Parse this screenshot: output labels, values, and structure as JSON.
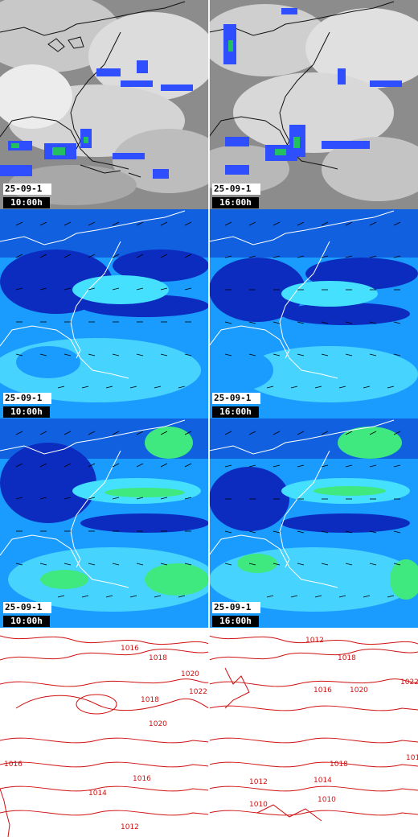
{
  "panels": [
    {
      "row": 0,
      "col": 0,
      "kind": "satellite-ir",
      "date": "25-09-1",
      "time": "10:00h"
    },
    {
      "row": 0,
      "col": 1,
      "kind": "satellite-ir",
      "date": "25-09-1",
      "time": "16:00h"
    },
    {
      "row": 1,
      "col": 0,
      "kind": "wind-field",
      "date": "25-09-1",
      "time": "10:00h"
    },
    {
      "row": 1,
      "col": 1,
      "kind": "wind-field",
      "date": "25-09-1",
      "time": "16:00h"
    },
    {
      "row": 2,
      "col": 0,
      "kind": "wind-gust-field",
      "date": "25-09-1",
      "time": "10:00h"
    },
    {
      "row": 2,
      "col": 1,
      "kind": "wind-gust-field",
      "date": "25-09-1",
      "time": "16:00h"
    },
    {
      "row": 3,
      "col": 0,
      "kind": "pressure-isobars"
    },
    {
      "row": 3,
      "col": 1,
      "kind": "pressure-isobars"
    }
  ],
  "isobar_labels": {
    "left": [
      "1016",
      "1018",
      "1020",
      "1022",
      "1018",
      "1020",
      "1016",
      "1016",
      "1014",
      "1012"
    ],
    "right": [
      "1012",
      "1018",
      "1016",
      "1020",
      "1022",
      "1018",
      "1014",
      "1012",
      "1010",
      "1012",
      "1010"
    ]
  },
  "colors": {
    "cloud": "#9a9a9a",
    "precip_light": "#2f4fff",
    "precip_mid": "#22c060",
    "wind_dark": "#1030c8",
    "wind_mid": "#1a9cff",
    "wind_light": "#46e0ff",
    "wind_high": "#40e880",
    "isobar": "#d01010",
    "coast": "#ffffff"
  }
}
